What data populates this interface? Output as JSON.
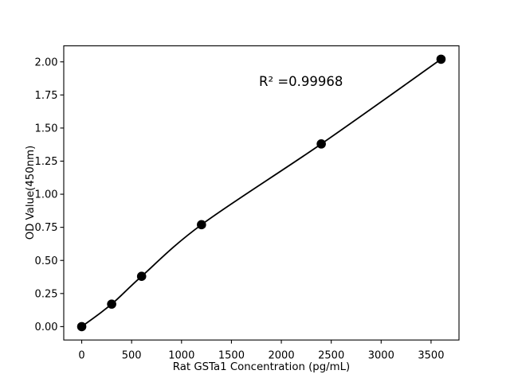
{
  "figure": {
    "background": "#ffffff"
  },
  "chart_data": {
    "type": "scatter",
    "title": "",
    "annotation": "R² =0.99968",
    "r_squared": 0.99968,
    "xlabel": "Rat GSTa1 Concentration (pg/mL)",
    "ylabel": "OD Value(450nm)",
    "x": [
      0,
      300,
      600,
      1200,
      2400,
      3600
    ],
    "y": [
      0.0,
      0.17,
      0.38,
      0.77,
      1.38,
      2.02
    ],
    "fit_type": "smooth regression curve through points",
    "xlim": [
      -180,
      3780
    ],
    "ylim": [
      -0.101,
      2.121
    ],
    "xtick_values": [
      0,
      500,
      1000,
      1500,
      2000,
      2500,
      3000,
      3500
    ],
    "xtick_labels": [
      "0",
      "500",
      "1000",
      "1500",
      "2000",
      "2500",
      "3000",
      "3500"
    ],
    "ytick_values": [
      0,
      0.25,
      0.5,
      0.75,
      1.0,
      1.25,
      1.5,
      1.75,
      2.0
    ],
    "ytick_labels": [
      "0.00",
      "0.25",
      "0.50",
      "0.75",
      "1.00",
      "1.25",
      "1.50",
      "1.75",
      "2.00"
    ],
    "grid": false,
    "legend": null,
    "line_color": "#000000",
    "marker_color": "#000000",
    "spine_color": "#000000"
  }
}
